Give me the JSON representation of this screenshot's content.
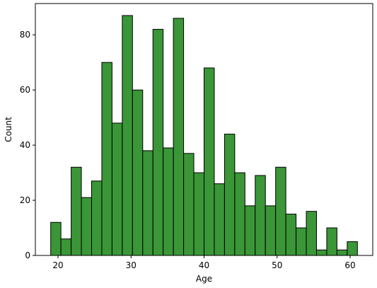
{
  "chart_data": {
    "type": "bar",
    "title": "",
    "xlabel": "Age",
    "ylabel": "Count",
    "xlim": [
      16.9,
      63.1
    ],
    "ylim": [
      0,
      91.35
    ],
    "grid": false,
    "bar_color": "#3a9637",
    "edge_color": "#000000",
    "bins": [
      {
        "x0": 19.0,
        "x1": 20.4,
        "count": 12
      },
      {
        "x0": 20.4,
        "x1": 21.8,
        "count": 6
      },
      {
        "x0": 21.8,
        "x1": 23.2,
        "count": 32
      },
      {
        "x0": 23.2,
        "x1": 24.6,
        "count": 21
      },
      {
        "x0": 24.6,
        "x1": 26.0,
        "count": 27
      },
      {
        "x0": 26.0,
        "x1": 27.4,
        "count": 70
      },
      {
        "x0": 27.4,
        "x1": 28.8,
        "count": 48
      },
      {
        "x0": 28.8,
        "x1": 30.2,
        "count": 87
      },
      {
        "x0": 30.2,
        "x1": 31.6,
        "count": 60
      },
      {
        "x0": 31.6,
        "x1": 33.0,
        "count": 38
      },
      {
        "x0": 33.0,
        "x1": 34.4,
        "count": 82
      },
      {
        "x0": 34.4,
        "x1": 35.8,
        "count": 39
      },
      {
        "x0": 35.8,
        "x1": 37.2,
        "count": 86
      },
      {
        "x0": 37.2,
        "x1": 38.6,
        "count": 37
      },
      {
        "x0": 38.6,
        "x1": 40.0,
        "count": 30
      },
      {
        "x0": 40.0,
        "x1": 41.4,
        "count": 68
      },
      {
        "x0": 41.4,
        "x1": 42.8,
        "count": 26
      },
      {
        "x0": 42.8,
        "x1": 44.2,
        "count": 44
      },
      {
        "x0": 44.2,
        "x1": 45.6,
        "count": 30
      },
      {
        "x0": 45.6,
        "x1": 47.0,
        "count": 18
      },
      {
        "x0": 47.0,
        "x1": 48.4,
        "count": 29
      },
      {
        "x0": 48.4,
        "x1": 49.8,
        "count": 18
      },
      {
        "x0": 49.8,
        "x1": 51.2,
        "count": 32
      },
      {
        "x0": 51.2,
        "x1": 52.6,
        "count": 15
      },
      {
        "x0": 52.6,
        "x1": 54.0,
        "count": 10
      },
      {
        "x0": 54.0,
        "x1": 55.4,
        "count": 16
      },
      {
        "x0": 55.4,
        "x1": 56.8,
        "count": 2
      },
      {
        "x0": 56.8,
        "x1": 58.2,
        "count": 10
      },
      {
        "x0": 58.2,
        "x1": 59.6,
        "count": 2
      },
      {
        "x0": 59.6,
        "x1": 61.0,
        "count": 5
      }
    ],
    "xticks": [
      20,
      30,
      40,
      50,
      60
    ],
    "yticks": [
      0,
      20,
      40,
      60,
      80
    ]
  }
}
